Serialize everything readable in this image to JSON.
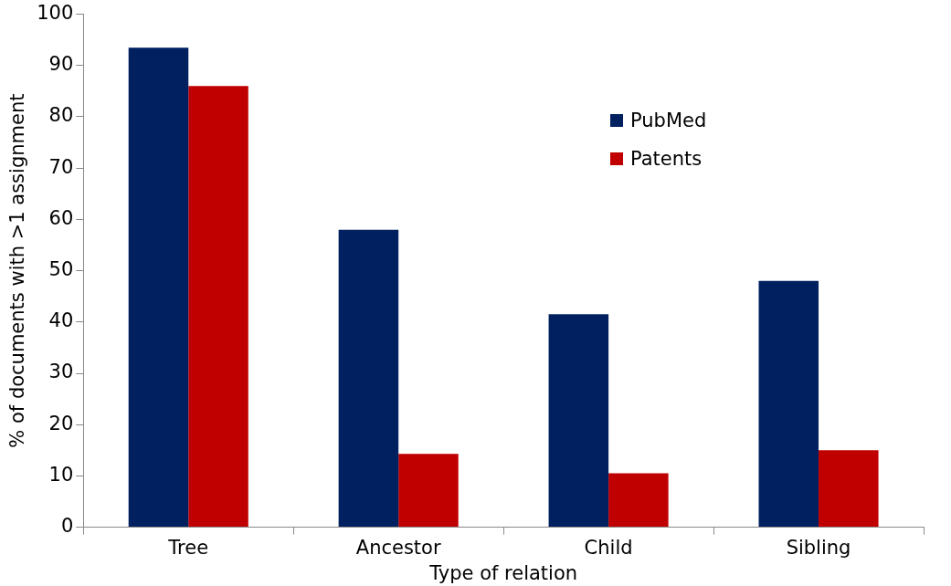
{
  "chart_data": {
    "type": "bar",
    "xlabel": "Type of relation",
    "ylabel": "% of documents with >1 assignment",
    "categories": [
      "Tree",
      "Ancestor",
      "Child",
      "Sibling"
    ],
    "series": [
      {
        "name": "PubMed",
        "color": "#002060",
        "values": [
          93.5,
          58,
          41.5,
          48
        ]
      },
      {
        "name": "Patents",
        "color": "#c00000",
        "values": [
          86,
          14.3,
          10.5,
          15
        ]
      }
    ],
    "ylim": [
      0,
      100
    ],
    "yticks": [
      0,
      10,
      20,
      30,
      40,
      50,
      60,
      70,
      80,
      90,
      100
    ],
    "grid": false,
    "legend": "top right"
  }
}
